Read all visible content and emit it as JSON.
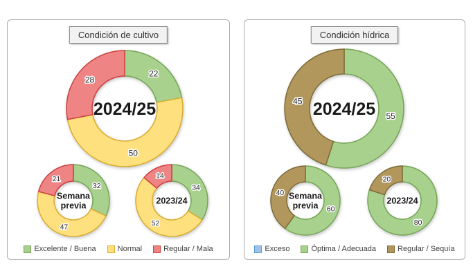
{
  "chart_data": [
    {
      "type": "pie",
      "variant": "donut",
      "title": "Condición de cultivo",
      "legend": [
        {
          "label": "Excelente / Buena",
          "fill": "#a9d18e",
          "stroke": "#74a455"
        },
        {
          "label": "Normal",
          "fill": "#ffe07e",
          "stroke": "#d8ab2e"
        },
        {
          "label": "Regular / Mala",
          "fill": "#ee8484",
          "stroke": "#cc3f3f"
        }
      ],
      "legend_position": "bottom",
      "donuts": [
        {
          "center_label": "2024/25",
          "values": [
            22,
            50,
            28
          ]
        },
        {
          "center_label": "Semana\nprevia",
          "values": [
            32,
            47,
            21
          ]
        },
        {
          "center_label": "2023/24",
          "values": [
            34,
            52,
            14
          ]
        }
      ]
    },
    {
      "type": "pie",
      "variant": "donut",
      "title": "Condición hídrica",
      "legend": [
        {
          "label": "Exceso",
          "fill": "#9dc3e6",
          "stroke": "#5b9bd5"
        },
        {
          "label": "Óptima / Adecuada",
          "fill": "#a9d18e",
          "stroke": "#74a455"
        },
        {
          "label": "Regular / Sequía",
          "fill": "#b2975c",
          "stroke": "#7e6a38"
        }
      ],
      "legend_position": "bottom",
      "donuts": [
        {
          "center_label": "2024/25",
          "values": [
            0,
            55,
            45
          ]
        },
        {
          "center_label": "Semana\nprevia",
          "values": [
            0,
            60,
            40
          ]
        },
        {
          "center_label": "2023/24",
          "values": [
            0,
            80,
            20
          ]
        }
      ]
    }
  ]
}
